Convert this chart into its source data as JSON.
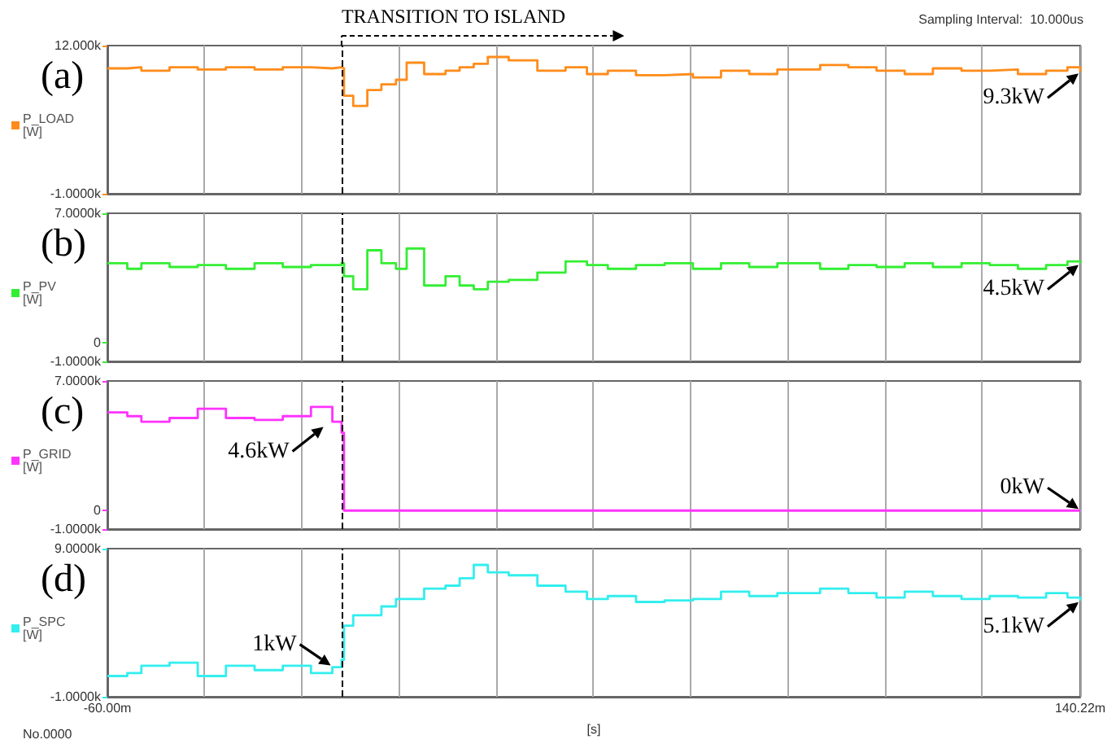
{
  "chart_data": [
    {
      "type": "step",
      "title": "(a)",
      "legend": "left",
      "grid": "x",
      "tick_labels": "y",
      "xlim": [
        -60,
        140.22
      ],
      "ylim": [
        -1000,
        12000
      ],
      "yticks": [
        {
          "value": -1000,
          "label": "-1.0000k"
        },
        {
          "value": 12000,
          "label": "12.000k"
        }
      ],
      "x": [
        -60,
        -55.9,
        -53,
        -47.2,
        -41.4,
        -35.6,
        -29.7,
        -23.9,
        -18.1,
        -13.7,
        -11.8,
        -11.3,
        -9.4,
        -6.5,
        -3.6,
        -0.6,
        1.6,
        5.2,
        9.6,
        12.5,
        15.4,
        18.3,
        22.6,
        28.5,
        34.3,
        38.7,
        43,
        48.8,
        54.7,
        60.5,
        66.3,
        72.1,
        77.9,
        86.7,
        92.5,
        98.3,
        104.1,
        109.9,
        115.8,
        121.6,
        127.4,
        133.2,
        137.6,
        140.22
      ],
      "series": [
        {
          "name": "P_LOAD [W]",
          "color": "#ff8c1a",
          "values": [
            10000,
            10100,
            9800,
            10100,
            9900,
            10100,
            9900,
            10100,
            10000,
            10100,
            10000,
            7600,
            6700,
            8100,
            8600,
            9000,
            10500,
            9500,
            9800,
            10100,
            10400,
            11000,
            10700,
            9800,
            10100,
            9500,
            9800,
            9400,
            9500,
            9200,
            9800,
            9500,
            9900,
            10300,
            10100,
            9800,
            9500,
            10000,
            9800,
            9900,
            9500,
            9800,
            10100,
            9700
          ]
        }
      ],
      "ref_lines": [
        {
          "axis": "x",
          "value": -11.8,
          "label": "TRANSITION TO ISLAND",
          "line_style": "dashed",
          "color": "#000000"
        }
      ],
      "annotations": [
        "Sampling Interval:  10.000us",
        {
          "text": "9.3kW",
          "x": 140.22,
          "y": 9700
        }
      ]
    },
    {
      "type": "step",
      "title": "(b)",
      "legend": "left",
      "grid": "x",
      "tick_labels": "y",
      "xlim": [
        -60,
        140.22
      ],
      "ylim": [
        -1000,
        7000
      ],
      "yticks": [
        {
          "value": -1000,
          "label": "-1.0000k"
        },
        0,
        {
          "value": 7000,
          "label": "7.0000k"
        }
      ],
      "x": [
        -60,
        -55.9,
        -53,
        -47.2,
        -41.4,
        -35.6,
        -29.7,
        -23.9,
        -18.1,
        -13.7,
        -11.8,
        -11.3,
        -9.4,
        -6.5,
        -3.6,
        -0.6,
        1.6,
        5.2,
        9.6,
        12.5,
        15.4,
        18.3,
        22.6,
        28.5,
        34.3,
        38.7,
        43,
        48.8,
        54.7,
        60.5,
        66.3,
        72.1,
        77.9,
        86.7,
        92.5,
        98.3,
        104.1,
        109.9,
        115.8,
        121.6,
        127.4,
        133.2,
        137.6,
        140.22
      ],
      "series": [
        {
          "name": "P_PV [W]",
          "color": "#33ee33",
          "values": [
            4300,
            4000,
            4300,
            4100,
            4200,
            4000,
            4300,
            4100,
            4200,
            4200,
            4300,
            3600,
            2900,
            5000,
            4300,
            4000,
            5100,
            3100,
            3600,
            3100,
            2900,
            3300,
            3400,
            3800,
            4400,
            4200,
            4000,
            4200,
            4300,
            4000,
            4300,
            4100,
            4300,
            4000,
            4200,
            4100,
            4300,
            4100,
            4300,
            4200,
            4000,
            4200,
            4400,
            4300
          ]
        }
      ],
      "ref_lines": [
        {
          "axis": "x",
          "value": -11.8,
          "line_style": "dashed",
          "color": "#000000"
        }
      ],
      "annotations": [
        {
          "text": "4.5kW",
          "x": 140.22,
          "y": 4300
        }
      ]
    },
    {
      "type": "step",
      "title": "(c)",
      "legend": "left",
      "grid": "x",
      "tick_labels": "y",
      "xlim": [
        -60,
        140.22
      ],
      "ylim": [
        -1000,
        7000
      ],
      "yticks": [
        {
          "value": -1000,
          "label": "-1.0000k"
        },
        0,
        {
          "value": 7000,
          "label": "7.0000k"
        }
      ],
      "x": [
        -60,
        -55.9,
        -53,
        -47.2,
        -41.4,
        -35.6,
        -29.7,
        -23.9,
        -18.1,
        -13.7,
        -11.8,
        -11.3,
        -9.4,
        -6.5,
        -3.6,
        -0.6,
        1.6,
        5.2,
        9.6,
        12.5,
        15.4,
        18.3,
        22.6,
        28.5,
        34.3,
        38.7,
        43,
        48.8,
        54.7,
        60.5,
        66.3,
        72.1,
        77.9,
        86.7,
        92.5,
        98.3,
        104.1,
        109.9,
        115.8,
        121.6,
        127.4,
        133.2,
        137.6,
        140.22
      ],
      "series": [
        {
          "name": "P_GRID [W]",
          "color": "#ff33ff",
          "values": [
            5300,
            5100,
            4800,
            5000,
            5500,
            5000,
            4900,
            5100,
            5600,
            4800,
            4200,
            0,
            0,
            0,
            0,
            0,
            0,
            0,
            0,
            0,
            0,
            0,
            0,
            0,
            0,
            0,
            0,
            0,
            0,
            0,
            0,
            0,
            0,
            0,
            0,
            0,
            0,
            0,
            0,
            0,
            0,
            0,
            0,
            0
          ]
        }
      ],
      "ref_lines": [
        {
          "axis": "x",
          "value": -11.8,
          "line_style": "dashed",
          "color": "#000000"
        }
      ],
      "annotations": [
        {
          "text": "4.6kW",
          "x": -15.2,
          "y": 4600
        },
        {
          "text": "0kW",
          "x": 140.22,
          "y": 0
        }
      ]
    },
    {
      "type": "step",
      "title": "(d)",
      "legend": "left",
      "grid": "x",
      "xlabel": "[s]",
      "xlim": [
        -60,
        140.22
      ],
      "xticks": [
        {
          "value": -60,
          "label": "-60.00m"
        },
        {
          "value": -40,
          "label": null
        },
        {
          "value": -20,
          "label": null
        },
        {
          "value": 0,
          "label": null
        },
        {
          "value": 20,
          "label": null
        },
        {
          "value": 40,
          "label": null
        },
        {
          "value": 60,
          "label": null
        },
        {
          "value": 80,
          "label": null
        },
        {
          "value": 100,
          "label": null
        },
        {
          "value": 120,
          "label": null
        },
        {
          "value": 140.22,
          "label": "140.22m"
        }
      ],
      "ylim": [
        -1000,
        9000
      ],
      "yticks": [
        {
          "value": -1000,
          "label": "-1.0000k"
        },
        {
          "value": 9000,
          "label": "9.0000k"
        }
      ],
      "x": [
        -60,
        -55.9,
        -53,
        -47.2,
        -41.4,
        -35.6,
        -29.7,
        -23.9,
        -18.1,
        -13.7,
        -11.8,
        -11.3,
        -9.4,
        -6.5,
        -3.6,
        -0.6,
        1.6,
        5.2,
        9.6,
        12.5,
        15.4,
        18.3,
        22.6,
        28.5,
        34.3,
        38.7,
        43,
        48.8,
        54.7,
        60.5,
        66.3,
        72.1,
        77.9,
        86.7,
        92.5,
        98.3,
        104.1,
        109.9,
        115.8,
        121.6,
        127.4,
        133.2,
        137.6,
        140.22
      ],
      "series": [
        {
          "name": "P_SPC [W]",
          "color": "#33eeee",
          "values": [
            400,
            600,
            1100,
            1300,
            400,
            1100,
            800,
            1100,
            600,
            1000,
            1500,
            3800,
            4500,
            4500,
            5100,
            5600,
            5600,
            6300,
            6500,
            7000,
            7900,
            7400,
            7200,
            6500,
            6100,
            5600,
            5800,
            5400,
            5500,
            5600,
            6100,
            5800,
            6000,
            6300,
            6000,
            5700,
            6100,
            5800,
            5600,
            5800,
            5700,
            6000,
            5700,
            5500
          ]
        }
      ],
      "ref_lines": [
        {
          "axis": "x",
          "value": -11.8,
          "line_style": "dashed",
          "color": "#000000"
        }
      ],
      "annotations": [
        "No.0000",
        {
          "text": "1kW",
          "x": -13.7,
          "y": 1000
        },
        {
          "text": "5.1kW",
          "x": 140.22,
          "y": 5500
        }
      ]
    }
  ]
}
